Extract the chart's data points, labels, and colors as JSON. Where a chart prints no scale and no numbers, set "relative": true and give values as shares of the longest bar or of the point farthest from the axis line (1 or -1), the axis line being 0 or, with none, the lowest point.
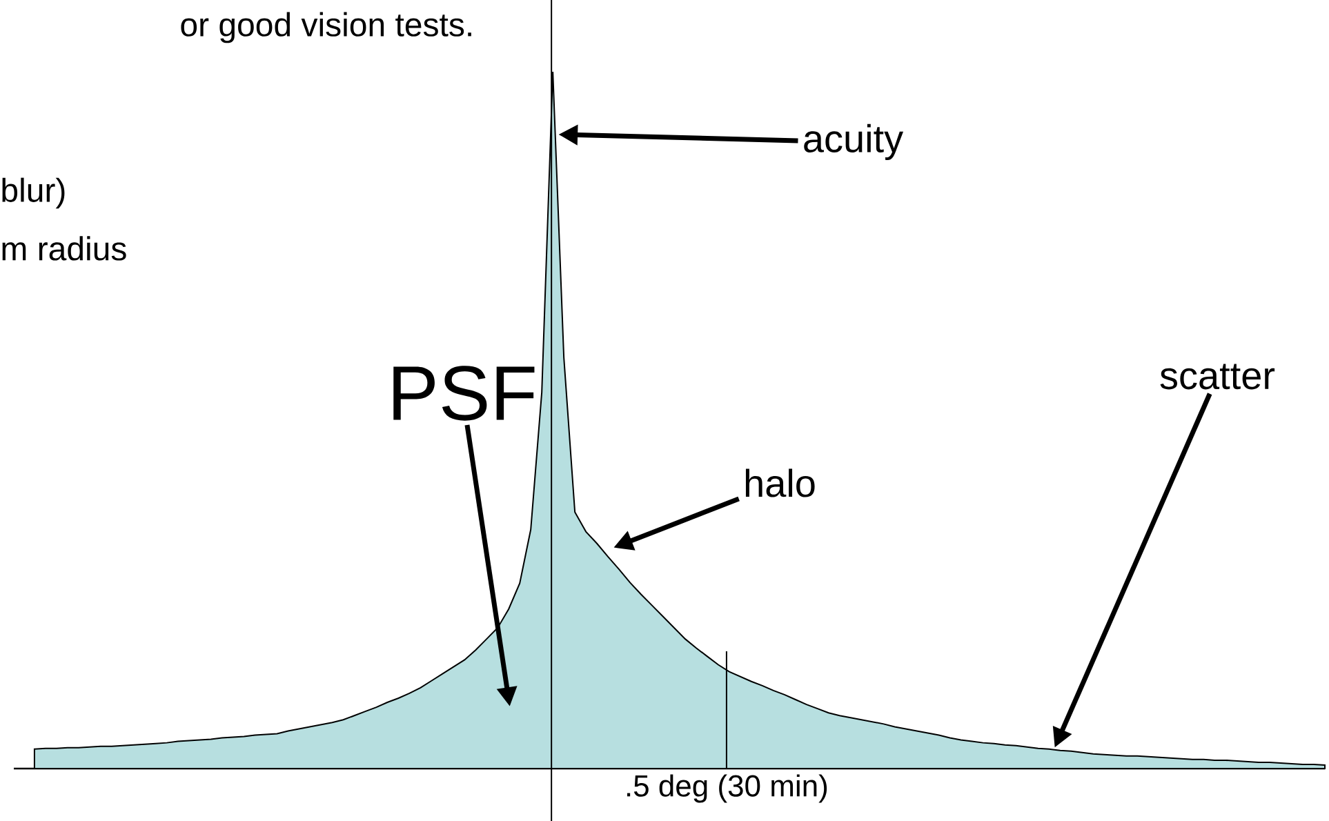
{
  "chart_data": {
    "type": "area",
    "relative": true,
    "color": "#b7dfe0",
    "categories": [
      null,
      null,
      null,
      null,
      null,
      null,
      null,
      null,
      null,
      null,
      null,
      null,
      null,
      null,
      null,
      null,
      null,
      null,
      null,
      null,
      null,
      null,
      null,
      null,
      null,
      null,
      null,
      null,
      null,
      null,
      null,
      null,
      null,
      null,
      null,
      null,
      null,
      null,
      null,
      null,
      null,
      null,
      null,
      null,
      null,
      null,
      null,
      null,
      null,
      null,
      null,
      null,
      null,
      null,
      null,
      null,
      null,
      null,
      null,
      null,
      null,
      null,
      null,
      null,
      null,
      null,
      null,
      null,
      null,
      null,
      null,
      null,
      null,
      null,
      null,
      null,
      null,
      null,
      null,
      null,
      null,
      null,
      null,
      null,
      null,
      null,
      null,
      null,
      null,
      null,
      null,
      null,
      null,
      null,
      null,
      null,
      null,
      null,
      null,
      null,
      null,
      null,
      null,
      null,
      null,
      null,
      null,
      null,
      null,
      null,
      null,
      null,
      null,
      null,
      null,
      null,
      null,
      null
    ],
    "values": [
      0.028,
      0.029,
      0.029,
      0.03,
      0.03,
      0.031,
      0.032,
      0.032,
      0.033,
      0.034,
      0.035,
      0.036,
      0.037,
      0.039,
      0.04,
      0.041,
      0.042,
      0.044,
      0.045,
      0.046,
      0.048,
      0.049,
      0.05,
      0.054,
      0.057,
      0.06,
      0.063,
      0.066,
      0.07,
      0.076,
      0.082,
      0.088,
      0.095,
      0.101,
      0.108,
      0.116,
      0.126,
      0.136,
      0.146,
      0.156,
      0.17,
      0.186,
      0.202,
      0.229,
      0.266,
      0.343,
      0.54,
      1.0,
      0.59,
      0.368,
      0.34,
      0.323,
      0.304,
      0.286,
      0.267,
      0.25,
      0.234,
      0.218,
      0.202,
      0.186,
      0.173,
      0.161,
      0.149,
      0.139,
      0.132,
      0.125,
      0.119,
      0.112,
      0.106,
      0.099,
      0.092,
      0.086,
      0.08,
      0.076,
      0.073,
      0.07,
      0.067,
      0.064,
      0.06,
      0.057,
      0.054,
      0.051,
      0.048,
      0.044,
      0.041,
      0.039,
      0.037,
      0.036,
      0.034,
      0.033,
      0.031,
      0.029,
      0.028,
      0.026,
      0.025,
      0.023,
      0.021,
      0.02,
      0.019,
      0.018,
      0.018,
      0.017,
      0.016,
      0.015,
      0.014,
      0.013,
      0.013,
      0.012,
      0.012,
      0.011,
      0.01,
      0.009,
      0.009,
      0.008,
      0.007,
      0.006,
      0.006,
      0.005
    ],
    "annotations": [
      "or good vision tests.",
      "blur)",
      "m radius",
      "acuity",
      "halo",
      "scatter",
      "PSF",
      ".5 deg (30 min)"
    ]
  }
}
